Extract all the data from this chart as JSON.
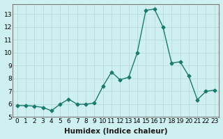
{
  "x": [
    0,
    1,
    2,
    3,
    4,
    5,
    6,
    7,
    8,
    9,
    10,
    11,
    12,
    13,
    14,
    15,
    16,
    17,
    18,
    19,
    20,
    21,
    22,
    23
  ],
  "y": [
    5.9,
    5.9,
    5.85,
    5.75,
    5.5,
    6.0,
    6.4,
    6.0,
    6.0,
    6.1,
    7.4,
    8.5,
    7.9,
    8.1,
    10.0,
    13.3,
    13.4,
    12.0,
    9.2,
    9.3,
    8.2,
    6.35,
    7.0,
    7.1
  ],
  "line_color": "#1a7a6e",
  "marker": "D",
  "marker_size": 2.5,
  "linewidth": 1.0,
  "bg_color": "#cff0f0",
  "grid_color": "#b8dada",
  "xlabel": "Humidex (Indice chaleur)",
  "xlim": [
    -0.5,
    23.5
  ],
  "ylim": [
    5.0,
    13.8
  ],
  "xticks": [
    0,
    1,
    2,
    3,
    4,
    5,
    6,
    7,
    8,
    9,
    10,
    11,
    12,
    13,
    14,
    15,
    16,
    17,
    18,
    19,
    20,
    21,
    22,
    23
  ],
  "yticks": [
    5,
    6,
    7,
    8,
    9,
    10,
    11,
    12,
    13
  ],
  "tick_fontsize": 6.5,
  "xlabel_fontsize": 7.5
}
